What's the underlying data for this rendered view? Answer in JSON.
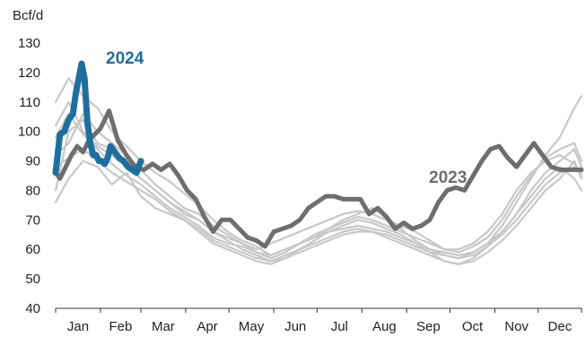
{
  "chart_data": {
    "type": "line",
    "title": "",
    "ylabel": "Bcf/d",
    "xlabel": "",
    "ylim": [
      40,
      130
    ],
    "yticks": [
      40,
      50,
      60,
      70,
      80,
      90,
      100,
      110,
      120,
      130
    ],
    "months": [
      "Jan",
      "Feb",
      "Mar",
      "Apr",
      "May",
      "Jun",
      "Jul",
      "Aug",
      "Sep",
      "Oct",
      "Nov",
      "Dec"
    ],
    "grid": false,
    "colors": {
      "history": "#c8c8c8",
      "y2023": "#6e6e6e",
      "y2024": "#1f6f9e",
      "axis": "#333333"
    },
    "series": [
      {
        "name": "2024",
        "color": "#1f6f9e",
        "x": [
          1,
          4,
          7,
          10,
          13,
          15,
          17,
          19,
          21,
          23,
          25,
          27,
          29,
          31,
          33,
          35,
          37,
          39,
          42,
          45,
          48,
          51,
          54,
          57,
          60
        ],
        "values": [
          86,
          99,
          100,
          104,
          106,
          113,
          118,
          123,
          118,
          103,
          96,
          92,
          92,
          90,
          90,
          89,
          91,
          95,
          93,
          91,
          90,
          88,
          87,
          86,
          90
        ]
      },
      {
        "name": "2023",
        "color": "#6e6e6e",
        "x": [
          1,
          4,
          8,
          12,
          16,
          20,
          24,
          28,
          32,
          38,
          44,
          50,
          56,
          62,
          68,
          74,
          80,
          86,
          92,
          98,
          104,
          110,
          116,
          122,
          128,
          134,
          140,
          146,
          152,
          158,
          164,
          170,
          176,
          182,
          188,
          194,
          200,
          206,
          212,
          218,
          224,
          230,
          236,
          242,
          248,
          254,
          260,
          266,
          272,
          278,
          284,
          290,
          296,
          302,
          308,
          314,
          320,
          326,
          332,
          338,
          344,
          350,
          356,
          362,
          365
        ],
        "values": [
          86,
          84,
          88,
          92,
          95,
          93,
          97,
          99,
          101,
          107,
          97,
          92,
          88,
          87,
          89,
          87,
          89,
          85,
          80,
          77,
          71,
          66,
          70,
          70,
          67,
          64,
          63,
          61,
          66,
          67,
          68,
          70,
          74,
          76,
          78,
          78,
          77,
          77,
          77,
          72,
          74,
          71,
          67,
          69,
          67,
          68,
          70,
          76,
          80,
          81,
          80,
          85,
          90,
          94,
          95,
          91,
          88,
          92,
          96,
          92,
          88,
          87,
          87,
          87,
          87
        ]
      },
      {
        "name": "",
        "color": "#c8c8c8",
        "x": [
          1,
          10,
          20,
          30,
          40,
          50,
          60,
          70,
          80,
          90,
          100,
          110,
          120,
          130,
          140,
          150,
          160,
          170,
          180,
          190,
          200,
          210,
          220,
          230,
          240,
          250,
          260,
          270,
          280,
          290,
          300,
          310,
          320,
          330,
          340,
          350,
          360,
          365
        ],
        "values": [
          80,
          100,
          104,
          96,
          94,
          90,
          84,
          80,
          76,
          72,
          70,
          66,
          64,
          62,
          60,
          62,
          64,
          66,
          68,
          70,
          72,
          73,
          72,
          70,
          68,
          66,
          63,
          60,
          60,
          62,
          66,
          72,
          80,
          86,
          90,
          92,
          89,
          86
        ]
      },
      {
        "name": "",
        "color": "#c8c8c8",
        "x": [
          1,
          10,
          20,
          30,
          40,
          50,
          60,
          70,
          80,
          90,
          100,
          110,
          120,
          130,
          140,
          150,
          160,
          170,
          180,
          190,
          200,
          210,
          220,
          230,
          240,
          250,
          260,
          270,
          280,
          290,
          300,
          310,
          320,
          330,
          340,
          350,
          360,
          365
        ],
        "values": [
          110,
          118,
          112,
          108,
          100,
          95,
          90,
          86,
          83,
          79,
          75,
          70,
          66,
          63,
          61,
          58,
          60,
          62,
          64,
          67,
          70,
          72,
          74,
          71,
          67,
          63,
          60,
          58,
          57,
          59,
          62,
          68,
          76,
          84,
          92,
          98,
          108,
          112
        ]
      },
      {
        "name": "",
        "color": "#c8c8c8",
        "x": [
          1,
          10,
          20,
          30,
          40,
          50,
          60,
          70,
          80,
          90,
          100,
          110,
          120,
          130,
          140,
          150,
          160,
          170,
          180,
          190,
          200,
          210,
          220,
          230,
          240,
          250,
          260,
          270,
          280,
          290,
          300,
          310,
          320,
          330,
          340,
          350,
          360,
          365
        ],
        "values": [
          76,
          84,
          90,
          88,
          82,
          86,
          78,
          74,
          72,
          70,
          66,
          62,
          60,
          58,
          56,
          55,
          57,
          60,
          63,
          66,
          68,
          70,
          69,
          67,
          65,
          62,
          59,
          56,
          55,
          57,
          61,
          66,
          72,
          78,
          84,
          88,
          84,
          80
        ]
      },
      {
        "name": "",
        "color": "#c8c8c8",
        "x": [
          1,
          10,
          20,
          30,
          40,
          50,
          60,
          70,
          80,
          90,
          100,
          110,
          120,
          130,
          140,
          150,
          160,
          170,
          180,
          190,
          200,
          210,
          220,
          230,
          240,
          250,
          260,
          270,
          280,
          290,
          300,
          310,
          320,
          330,
          340,
          350,
          360,
          365
        ],
        "values": [
          92,
          96,
          106,
          100,
          96,
          92,
          87,
          82,
          78,
          74,
          72,
          68,
          65,
          62,
          59,
          57,
          59,
          62,
          65,
          67,
          69,
          71,
          70,
          68,
          66,
          64,
          62,
          60,
          59,
          61,
          64,
          70,
          78,
          85,
          91,
          94,
          96,
          90
        ]
      },
      {
        "name": "",
        "color": "#c8c8c8",
        "x": [
          1,
          10,
          20,
          30,
          40,
          50,
          60,
          70,
          80,
          90,
          100,
          110,
          120,
          130,
          140,
          150,
          160,
          170,
          180,
          190,
          200,
          210,
          220,
          230,
          240,
          250,
          260,
          270,
          280,
          290,
          300,
          310,
          320,
          330,
          340,
          350,
          360,
          365
        ],
        "values": [
          98,
          106,
          99,
          94,
          89,
          85,
          82,
          78,
          74,
          71,
          68,
          64,
          62,
          61,
          59,
          58,
          60,
          62,
          64,
          66,
          67,
          68,
          67,
          66,
          64,
          62,
          60,
          59,
          58,
          59,
          62,
          66,
          72,
          80,
          86,
          90,
          94,
          88
        ]
      },
      {
        "name": "",
        "color": "#c8c8c8",
        "x": [
          1,
          10,
          20,
          30,
          40,
          50,
          60,
          70,
          80,
          90,
          100,
          110,
          120,
          130,
          140,
          150,
          160,
          170,
          180,
          190,
          200,
          210,
          220,
          230,
          240,
          250,
          260,
          270,
          280,
          290,
          300,
          310,
          320,
          330,
          340,
          350,
          360,
          365
        ],
        "values": [
          88,
          91,
          94,
          90,
          86,
          83,
          80,
          77,
          73,
          70,
          67,
          63,
          61,
          59,
          57,
          56,
          58,
          60,
          62,
          64,
          66,
          67,
          66,
          65,
          63,
          61,
          59,
          58,
          57,
          58,
          61,
          65,
          70,
          76,
          82,
          86,
          88,
          85
        ]
      },
      {
        "name": "",
        "color": "#c8c8c8",
        "x": [
          1,
          10,
          20,
          30,
          40,
          50,
          60,
          70,
          80,
          90,
          100,
          110,
          120,
          130,
          140,
          150,
          160,
          170,
          180,
          190,
          200,
          210,
          220,
          230,
          240,
          250,
          260,
          270,
          280,
          290,
          300,
          310,
          320,
          330,
          340,
          350,
          360,
          365
        ],
        "values": [
          102,
          110,
          100,
          95,
          92,
          88,
          84,
          80,
          76,
          73,
          70,
          66,
          63,
          60,
          58,
          56,
          57,
          59,
          61,
          63,
          65,
          66,
          66,
          64,
          62,
          60,
          58,
          56,
          55,
          56,
          59,
          63,
          68,
          74,
          80,
          84,
          90,
          84
        ]
      }
    ]
  }
}
